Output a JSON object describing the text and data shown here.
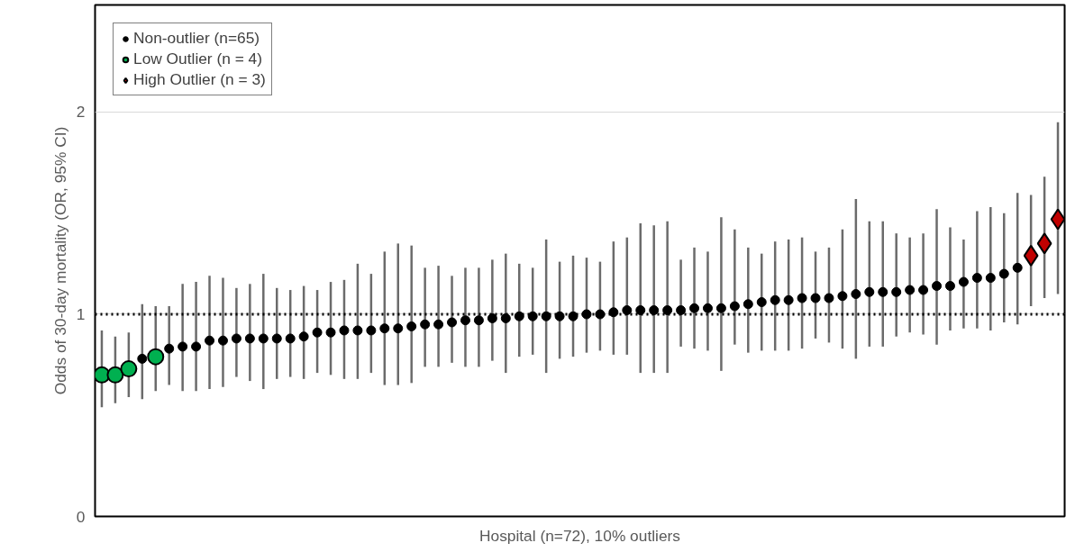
{
  "chart_data": {
    "type": "scatter",
    "xlabel": "Hospital (n=72), 10% outliers",
    "ylabel": "Odds of 30-day mortality (OR, 95% CI)",
    "categories": [
      null,
      null,
      null,
      null,
      null,
      null,
      null,
      null,
      null,
      null,
      null,
      null,
      null,
      null,
      null,
      null,
      null,
      null,
      null,
      null,
      null,
      null,
      null,
      null,
      null,
      null,
      null,
      null,
      null,
      null,
      null,
      null,
      null,
      null,
      null,
      null,
      null,
      null,
      null,
      null,
      null,
      null,
      null,
      null,
      null,
      null,
      null,
      null,
      null,
      null,
      null,
      null,
      null,
      null,
      null,
      null,
      null,
      null,
      null,
      null,
      null,
      null,
      null,
      null,
      null,
      null,
      null,
      null,
      null,
      null,
      null,
      null
    ],
    "ylim": [
      0,
      2.53
    ],
    "yticks": [
      0,
      1,
      2
    ],
    "grid": "y",
    "legend": "top left",
    "tick_labels": "y",
    "ref_lines": [
      {
        "axis": "y",
        "value": 1,
        "color": "#000000",
        "line_style": "dotted"
      }
    ],
    "series": [
      {
        "name": "Non-outlier (n=65)",
        "color": "#000000",
        "marker": "circle",
        "values": [
          null,
          null,
          null,
          0.78,
          null,
          0.83,
          0.84,
          0.84,
          0.87,
          0.87,
          0.88,
          0.88,
          0.88,
          0.88,
          0.88,
          0.89,
          0.91,
          0.91,
          0.92,
          0.92,
          0.92,
          0.93,
          0.93,
          0.94,
          0.95,
          0.95,
          0.96,
          0.97,
          0.97,
          0.98,
          0.98,
          0.99,
          0.99,
          0.99,
          0.99,
          0.99,
          1.0,
          1.0,
          1.01,
          1.02,
          1.02,
          1.02,
          1.02,
          1.02,
          1.03,
          1.03,
          1.03,
          1.04,
          1.05,
          1.06,
          1.07,
          1.07,
          1.08,
          1.08,
          1.08,
          1.09,
          1.1,
          1.11,
          1.11,
          1.11,
          1.12,
          1.12,
          1.14,
          1.14,
          1.16,
          1.18,
          1.18,
          1.2,
          1.23,
          null,
          null,
          null
        ],
        "errors": [
          null,
          null,
          null,
          [
            0.58,
            1.05
          ],
          null,
          [
            0.65,
            1.04
          ],
          [
            0.62,
            1.15
          ],
          [
            0.62,
            1.16
          ],
          [
            0.63,
            1.19
          ],
          [
            0.64,
            1.18
          ],
          [
            0.69,
            1.13
          ],
          [
            0.67,
            1.15
          ],
          [
            0.63,
            1.2
          ],
          [
            0.68,
            1.13
          ],
          [
            0.69,
            1.12
          ],
          [
            0.68,
            1.14
          ],
          [
            0.71,
            1.12
          ],
          [
            0.7,
            1.16
          ],
          [
            0.68,
            1.17
          ],
          [
            0.68,
            1.25
          ],
          [
            0.71,
            1.2
          ],
          [
            0.65,
            1.31
          ],
          [
            0.65,
            1.35
          ],
          [
            0.66,
            1.34
          ],
          [
            0.74,
            1.23
          ],
          [
            0.74,
            1.24
          ],
          [
            0.76,
            1.19
          ],
          [
            0.74,
            1.23
          ],
          [
            0.74,
            1.23
          ],
          [
            0.77,
            1.27
          ],
          [
            0.71,
            1.3
          ],
          [
            0.79,
            1.25
          ],
          [
            0.8,
            1.23
          ],
          [
            0.71,
            1.37
          ],
          [
            0.78,
            1.26
          ],
          [
            0.79,
            1.29
          ],
          [
            0.81,
            1.28
          ],
          [
            0.82,
            1.26
          ],
          [
            0.8,
            1.36
          ],
          [
            0.8,
            1.38
          ],
          [
            0.71,
            1.45
          ],
          [
            0.71,
            1.44
          ],
          [
            0.71,
            1.46
          ],
          [
            0.84,
            1.27
          ],
          [
            0.83,
            1.33
          ],
          [
            0.82,
            1.31
          ],
          [
            0.72,
            1.48
          ],
          [
            0.85,
            1.42
          ],
          [
            0.81,
            1.33
          ],
          [
            0.82,
            1.3
          ],
          [
            0.82,
            1.36
          ],
          [
            0.82,
            1.37
          ],
          [
            0.83,
            1.38
          ],
          [
            0.88,
            1.31
          ],
          [
            0.86,
            1.33
          ],
          [
            0.83,
            1.42
          ],
          [
            0.78,
            1.57
          ],
          [
            0.84,
            1.46
          ],
          [
            0.84,
            1.46
          ],
          [
            0.89,
            1.4
          ],
          [
            0.91,
            1.38
          ],
          [
            0.9,
            1.4
          ],
          [
            0.85,
            1.52
          ],
          [
            0.92,
            1.43
          ],
          [
            0.93,
            1.37
          ],
          [
            0.93,
            1.51
          ],
          [
            0.92,
            1.53
          ],
          [
            0.96,
            1.5
          ],
          [
            0.95,
            1.6
          ],
          null,
          null,
          null
        ]
      },
      {
        "name": "Low Outlier (n = 4)",
        "color": "#00b050",
        "marker": "circle",
        "values": [
          0.7,
          0.7,
          0.73,
          null,
          0.79,
          null,
          null,
          null,
          null,
          null,
          null,
          null,
          null,
          null,
          null,
          null,
          null,
          null,
          null,
          null,
          null,
          null,
          null,
          null,
          null,
          null,
          null,
          null,
          null,
          null,
          null,
          null,
          null,
          null,
          null,
          null,
          null,
          null,
          null,
          null,
          null,
          null,
          null,
          null,
          null,
          null,
          null,
          null,
          null,
          null,
          null,
          null,
          null,
          null,
          null,
          null,
          null,
          null,
          null,
          null,
          null,
          null,
          null,
          null,
          null,
          null,
          null,
          null,
          null,
          null,
          null,
          null
        ],
        "errors": [
          [
            0.54,
            0.92
          ],
          [
            0.56,
            0.89
          ],
          [
            0.59,
            0.91
          ],
          null,
          [
            0.62,
            1.04
          ],
          null,
          null,
          null,
          null,
          null,
          null,
          null,
          null,
          null,
          null,
          null,
          null,
          null,
          null,
          null,
          null,
          null,
          null,
          null,
          null,
          null,
          null,
          null,
          null,
          null,
          null,
          null,
          null,
          null,
          null,
          null,
          null,
          null,
          null,
          null,
          null,
          null,
          null,
          null,
          null,
          null,
          null,
          null,
          null,
          null,
          null,
          null,
          null,
          null,
          null,
          null,
          null,
          null,
          null,
          null,
          null,
          null,
          null,
          null,
          null,
          null,
          null,
          null,
          null,
          null,
          null,
          null
        ]
      },
      {
        "name": "High Outlier (n = 3)",
        "color": "#c00000",
        "marker": "diamond",
        "values": [
          null,
          null,
          null,
          null,
          null,
          null,
          null,
          null,
          null,
          null,
          null,
          null,
          null,
          null,
          null,
          null,
          null,
          null,
          null,
          null,
          null,
          null,
          null,
          null,
          null,
          null,
          null,
          null,
          null,
          null,
          null,
          null,
          null,
          null,
          null,
          null,
          null,
          null,
          null,
          null,
          null,
          null,
          null,
          null,
          null,
          null,
          null,
          null,
          null,
          null,
          null,
          null,
          null,
          null,
          null,
          null,
          null,
          null,
          null,
          null,
          null,
          null,
          null,
          null,
          null,
          null,
          null,
          null,
          null,
          1.29,
          1.35,
          1.47
        ],
        "errors": [
          null,
          null,
          null,
          null,
          null,
          null,
          null,
          null,
          null,
          null,
          null,
          null,
          null,
          null,
          null,
          null,
          null,
          null,
          null,
          null,
          null,
          null,
          null,
          null,
          null,
          null,
          null,
          null,
          null,
          null,
          null,
          null,
          null,
          null,
          null,
          null,
          null,
          null,
          null,
          null,
          null,
          null,
          null,
          null,
          null,
          null,
          null,
          null,
          null,
          null,
          null,
          null,
          null,
          null,
          null,
          null,
          null,
          null,
          null,
          null,
          null,
          null,
          null,
          null,
          null,
          null,
          null,
          null,
          null,
          [
            1.04,
            1.59
          ],
          [
            1.08,
            1.68
          ],
          [
            1.1,
            1.95
          ]
        ]
      }
    ]
  }
}
